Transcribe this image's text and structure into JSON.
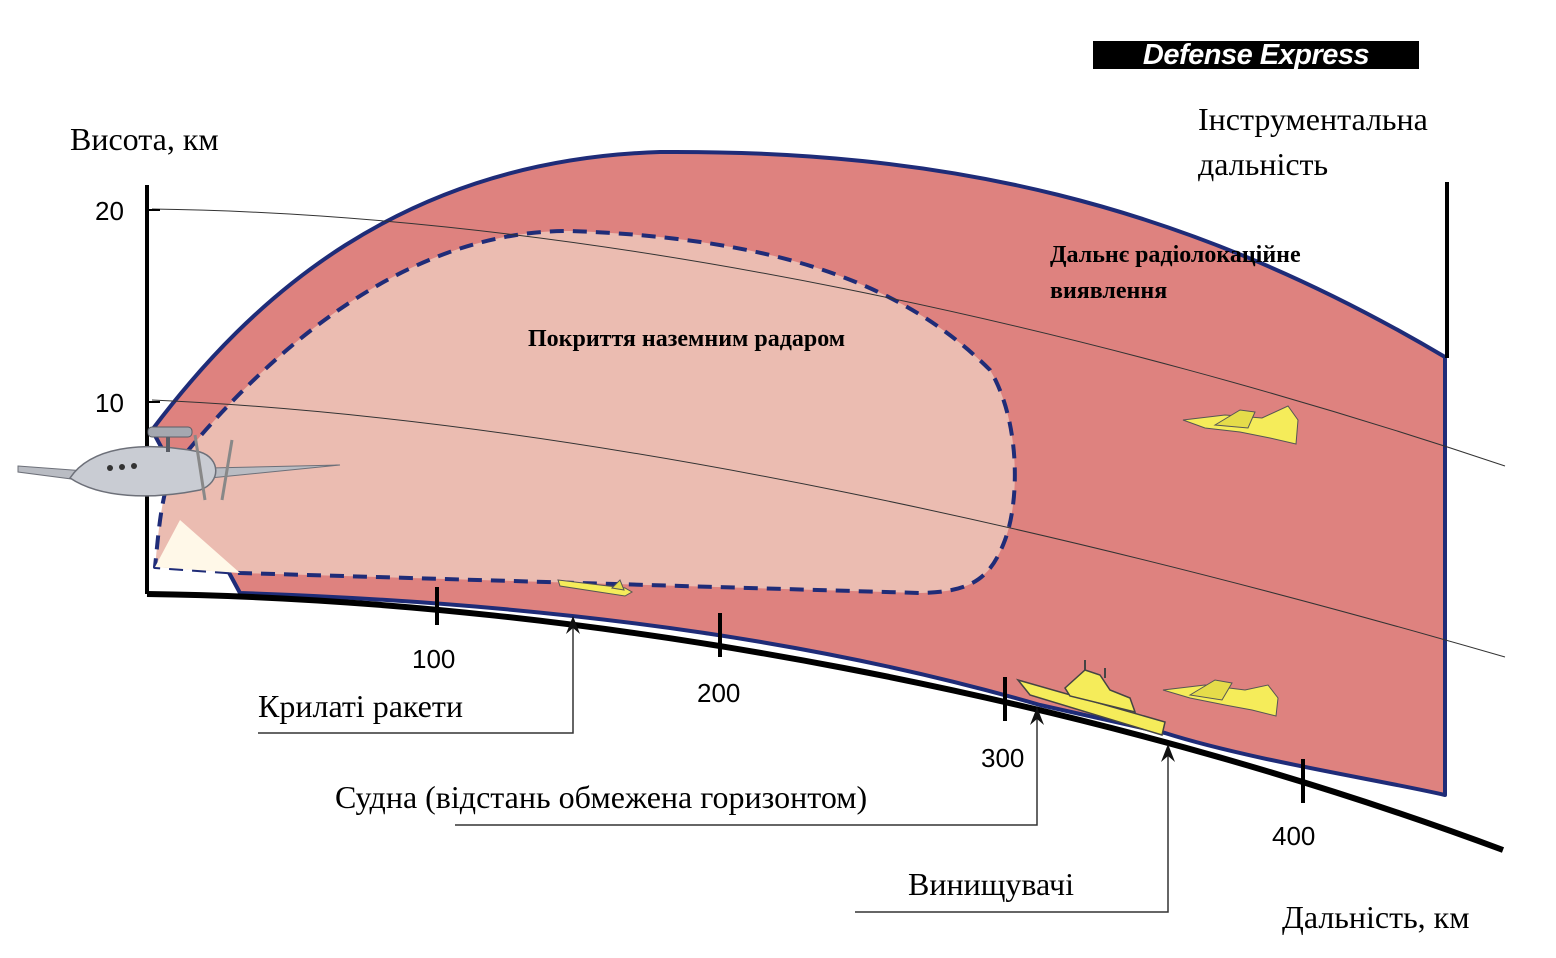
{
  "logo": {
    "text": "Defense Express"
  },
  "axes": {
    "y_label": "Висота, км",
    "x_label": "Дальність, км",
    "y_ticks": [
      "20",
      "10"
    ],
    "x_ticks": [
      "100",
      "200",
      "300",
      "400"
    ]
  },
  "labels": {
    "instrumental_range_line1": "Інструментальна",
    "instrumental_range_line2": "дальність",
    "aew_zone_line1": "Дальнє радіолокаційне",
    "aew_zone_line2": "виявлення",
    "ground_radar": "Покриття наземним радаром"
  },
  "callouts": {
    "cruise_missiles": "Крилаті ракети",
    "ships": "Судна (відстань обмежена горизонтом)",
    "fighters": "Винищувачі"
  },
  "colors": {
    "aew_zone": "#de827f",
    "ground_zone": "#ebbcb1",
    "border_blue": "#1f2c78",
    "target_yellow": "#f5ec5a",
    "logo_bg": "#000000"
  },
  "icons": {
    "aircraft": "aew-aircraft-icon",
    "fighter": "fighter-jet-icon",
    "ship": "warship-icon",
    "missile": "cruise-missile-icon"
  }
}
